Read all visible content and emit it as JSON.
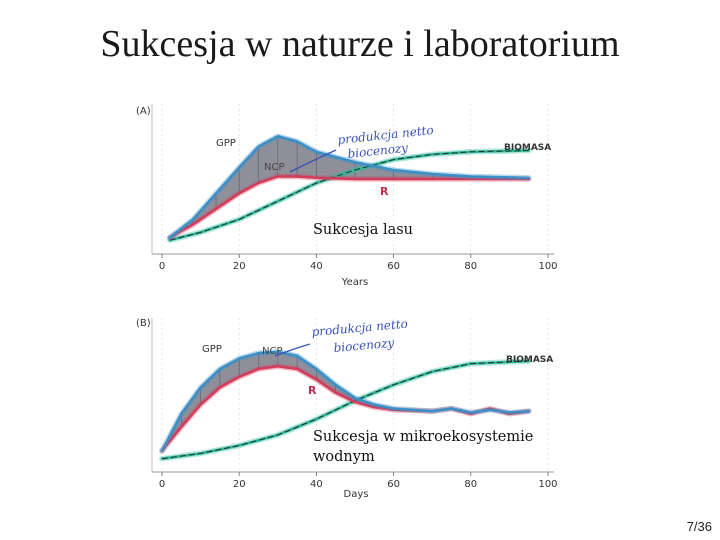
{
  "slide": {
    "title": "Sukcesja w naturze i laboratorium",
    "page_number": "7/36"
  },
  "chart_data": [
    {
      "type": "line",
      "panel_label": "(A)",
      "caption": "Sukcesja lasu",
      "xlabel": "Years",
      "xlim": [
        0,
        100
      ],
      "ylim": [
        0,
        100
      ],
      "x_ticks": [
        "0",
        "20",
        "40",
        "60",
        "80",
        "100"
      ],
      "annotations": {
        "gpp": "GPP",
        "ncp": "NCP",
        "r": "R",
        "biomass": "BIOMASA",
        "net_production_1": "produkcja netto",
        "net_production_2": "biocenozy"
      },
      "colors": {
        "gpp": "#3a8fc6",
        "r": "#d43a5a",
        "biomass": "#2fb79a",
        "band": "#6a6a78"
      },
      "series": [
        {
          "name": "GPP",
          "x": [
            2,
            8,
            14,
            20,
            25,
            30,
            35,
            40,
            50,
            60,
            70,
            80,
            95
          ],
          "y": [
            8,
            22,
            42,
            62,
            78,
            86,
            82,
            74,
            66,
            60,
            57,
            55,
            54
          ]
        },
        {
          "name": "R",
          "x": [
            2,
            8,
            14,
            20,
            25,
            30,
            35,
            40,
            50,
            60,
            70,
            80,
            95
          ],
          "y": [
            8,
            18,
            30,
            42,
            50,
            55,
            55,
            54,
            53,
            53,
            53,
            53,
            53
          ]
        },
        {
          "name": "BIOMASA",
          "x": [
            2,
            10,
            20,
            30,
            40,
            50,
            60,
            70,
            80,
            95
          ],
          "y": [
            6,
            12,
            22,
            36,
            50,
            60,
            68,
            72,
            74,
            75
          ]
        }
      ]
    },
    {
      "type": "line",
      "panel_label": "(B)",
      "caption": "Sukcesja w mikroekosystemie wodnym",
      "xlabel": "Days",
      "xlim": [
        0,
        100
      ],
      "ylim": [
        0,
        100
      ],
      "x_ticks": [
        "0",
        "20",
        "40",
        "60",
        "80",
        "100"
      ],
      "annotations": {
        "gpp": "GPP",
        "ncp": "NCP",
        "r": "R",
        "biomass": "BIOMASA",
        "net_production_1": "produkcja netto",
        "net_production_2": "biocenozy"
      },
      "colors": {
        "gpp": "#3a8fc6",
        "r": "#d43a5a",
        "biomass": "#2fb79a",
        "band": "#6a6a78"
      },
      "series": [
        {
          "name": "GPP",
          "x": [
            0,
            5,
            10,
            15,
            20,
            25,
            30,
            35,
            40,
            45,
            50,
            55,
            60,
            70,
            75,
            80,
            85,
            90,
            95
          ],
          "y": [
            10,
            38,
            58,
            72,
            80,
            84,
            85,
            82,
            72,
            60,
            50,
            45,
            42,
            40,
            42,
            39,
            41,
            39,
            40
          ]
        },
        {
          "name": "R",
          "x": [
            0,
            5,
            10,
            15,
            20,
            25,
            30,
            35,
            40,
            45,
            50,
            55,
            60,
            70,
            75,
            80,
            85,
            90,
            95
          ],
          "y": [
            10,
            28,
            45,
            58,
            66,
            72,
            74,
            72,
            64,
            54,
            47,
            43,
            41,
            40,
            42,
            38,
            42,
            38,
            40
          ]
        },
        {
          "name": "BIOMASA",
          "x": [
            0,
            10,
            20,
            30,
            40,
            50,
            60,
            70,
            80,
            95
          ],
          "y": [
            4,
            8,
            14,
            22,
            34,
            48,
            60,
            70,
            76,
            78
          ]
        }
      ]
    }
  ]
}
